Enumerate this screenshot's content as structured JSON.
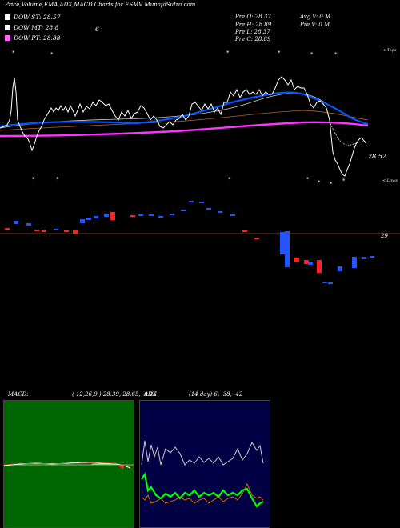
{
  "header": {
    "title": "Price,Volume,EMA,ADX,MACD Charts for ESMV MunafaSutra.com",
    "prev_open": "Pre  O: 28.37",
    "prev_high": "Pre  H: 28.89",
    "prev_low": "Pre  L: 28.37",
    "prev_close": "Pre  C: 28.89",
    "avg_volume": "Avg V: 0  M",
    "prev_volume": "Pre  V: 0  M"
  },
  "legend": {
    "st": {
      "label": "DOW ST: 28.57",
      "color": "#ffffff"
    },
    "mt": {
      "label": "DOW MT: 28.8",
      "color": "#ffffff"
    },
    "pt": {
      "label": "DOW PT: 28.88",
      "color": "#ff66ff"
    },
    "st_extra": "6"
  },
  "price_panel": {
    "last_price_label": "28.52",
    "upper_right_label": "< Tops",
    "lower_right_label": "< Lows",
    "volume_ref_label": "29"
  },
  "macd": {
    "label": "MACD:",
    "params": "( 12,26,9 ) 28.39,  28.65,  -0.26"
  },
  "adx": {
    "label": "ADX",
    "params": "(14  day) 6,  -38,  -42"
  },
  "colors": {
    "price_line": "#ffffff",
    "ema_short": "#0055ff",
    "ema_long": "#ff33ff",
    "ema_mid": "#cccccc",
    "ema_brown": "#aa6633",
    "up_candle": "#2255ff",
    "down_candle": "#ff2222",
    "macd_bg": "#006600",
    "adx_bg": "#000044",
    "adx_green": "#00ff00",
    "adx_orange": "#ff7700"
  },
  "chart_data": {
    "type": "line",
    "title": "Price,Volume,EMA,ADX,MACD Charts for ESMV MunafaSutra.com",
    "series": [
      {
        "name": "DOW ST",
        "values": [
          28.57
        ]
      },
      {
        "name": "DOW MT",
        "values": [
          28.8
        ]
      },
      {
        "name": "DOW PT",
        "values": [
          28.88
        ]
      }
    ],
    "last_price": 28.52,
    "volume_reference": 29,
    "macd_values": {
      "fast": 12,
      "slow": 26,
      "signal": 9,
      "macd": 28.39,
      "signal_line": 28.65,
      "histogram": -0.26
    },
    "adx_values": {
      "period_days": 14,
      "adx": 6,
      "plus_di": -38,
      "minus_di": -42
    },
    "grid": false
  }
}
